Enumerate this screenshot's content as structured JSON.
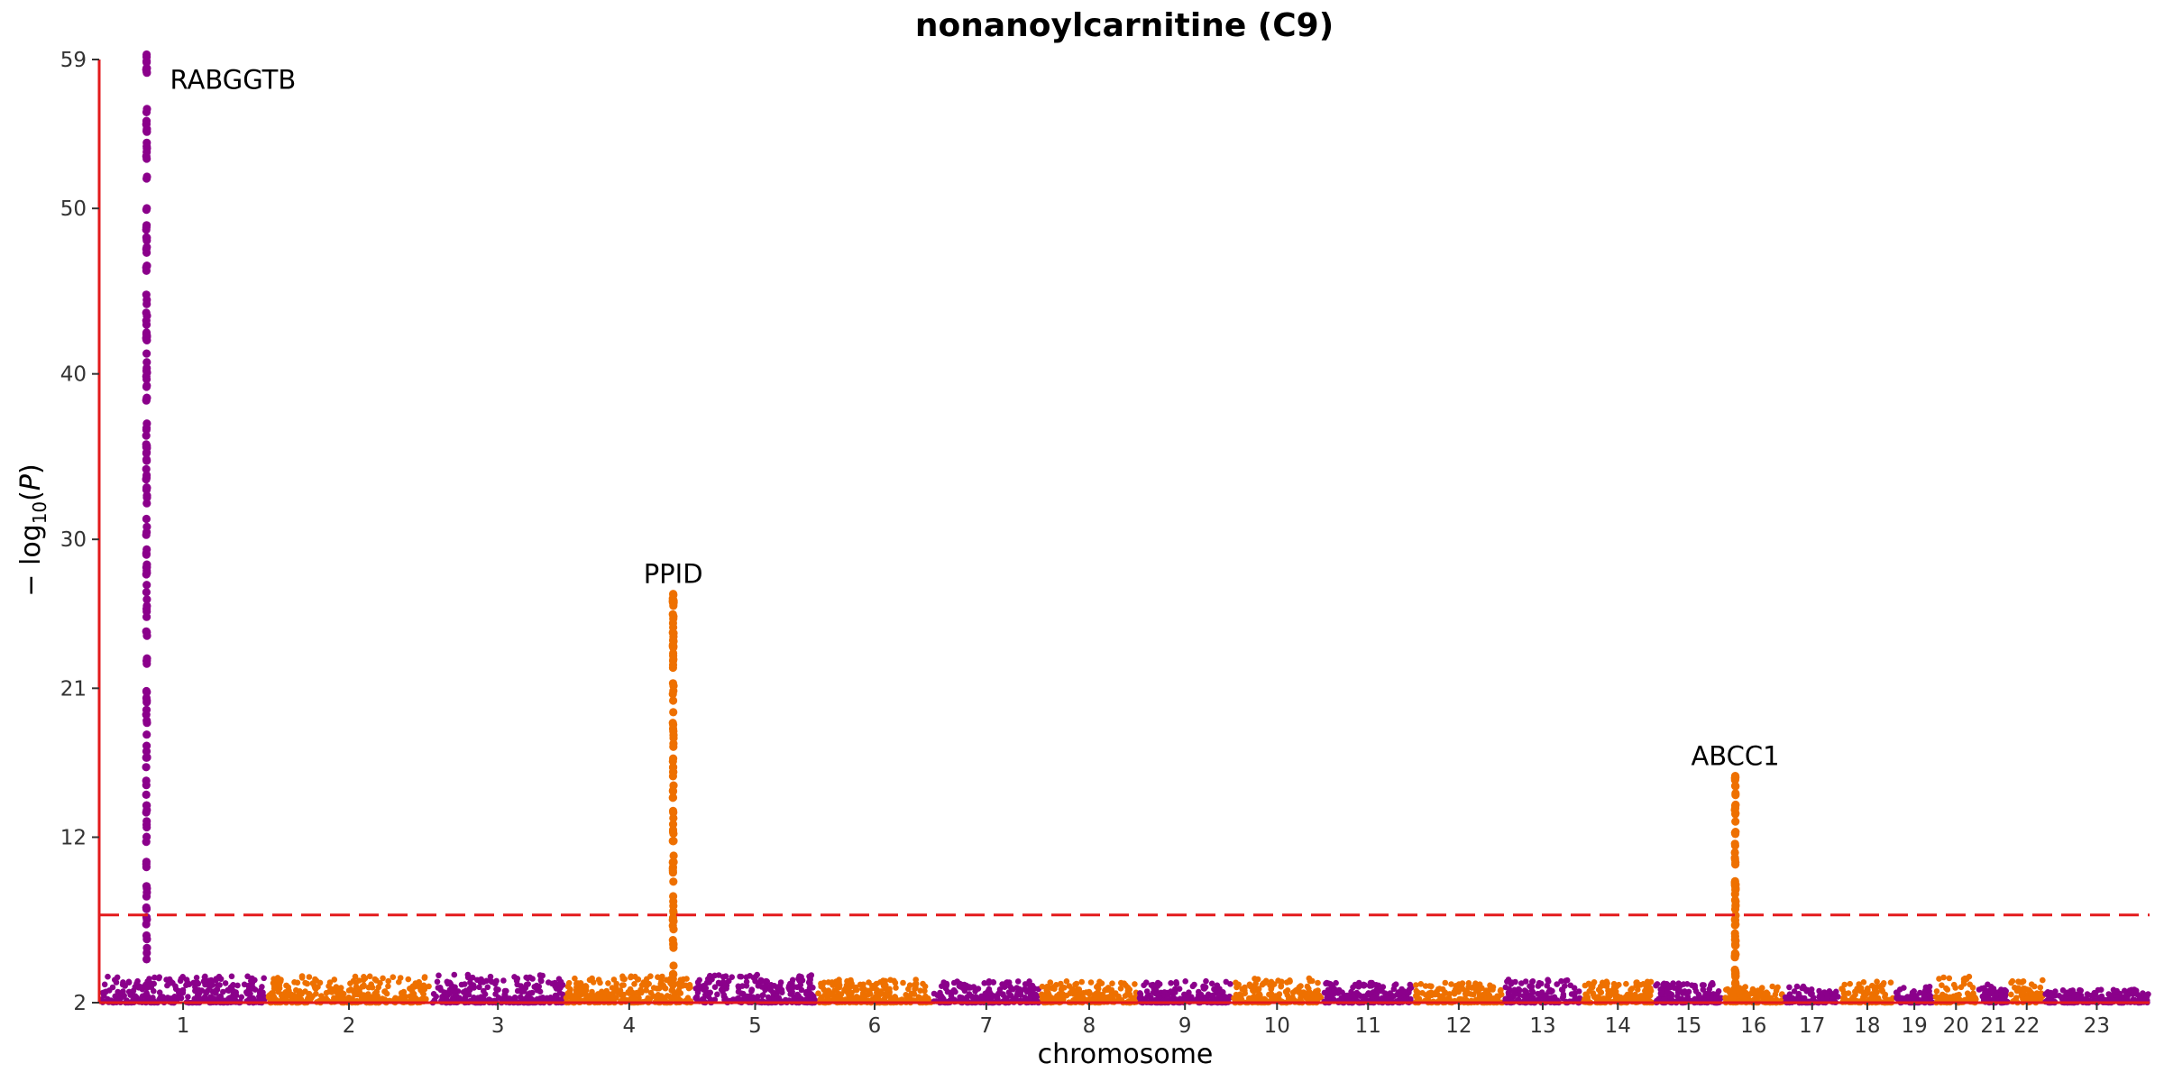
{
  "chart_data": {
    "type": "scatter",
    "subtype": "manhattan",
    "title": "nonanoylcarnitine (C9)",
    "xlabel": "chromosome",
    "ylabel": {
      "prefix": "− log",
      "sub": "10",
      "open": "(",
      "var": "P",
      "close": ")"
    },
    "ylim": [
      2,
      59
    ],
    "yticks": [
      {
        "value": 2,
        "label": "2"
      },
      {
        "value": 12,
        "label": "12"
      },
      {
        "value": 21,
        "label": "21"
      },
      {
        "value": 30,
        "label": "30"
      },
      {
        "value": 40,
        "label": "40"
      },
      {
        "value": 50,
        "label": "50"
      },
      {
        "value": 59,
        "label": "59"
      }
    ],
    "significance_threshold": 7.3,
    "colors": {
      "odd": "#8B008B",
      "even": "#EE7000",
      "axis": "#E31A1C",
      "threshold": "#E31A1C"
    },
    "chromosomes": [
      {
        "label": "1",
        "start": 0,
        "end": 248,
        "baseline_max": 3.6
      },
      {
        "label": "2",
        "start": 248,
        "end": 490,
        "baseline_max": 3.7
      },
      {
        "label": "3",
        "start": 490,
        "end": 688,
        "baseline_max": 3.7
      },
      {
        "label": "4",
        "start": 688,
        "end": 878,
        "baseline_max": 3.6
      },
      {
        "label": "5",
        "start": 878,
        "end": 1060,
        "baseline_max": 3.7
      },
      {
        "label": "6",
        "start": 1060,
        "end": 1231,
        "baseline_max": 3.4
      },
      {
        "label": "7",
        "start": 1231,
        "end": 1390,
        "baseline_max": 3.3
      },
      {
        "label": "8",
        "start": 1390,
        "end": 1535,
        "baseline_max": 3.3
      },
      {
        "label": "9",
        "start": 1535,
        "end": 1673,
        "baseline_max": 3.3
      },
      {
        "label": "10",
        "start": 1673,
        "end": 1807,
        "baseline_max": 3.5
      },
      {
        "label": "11",
        "start": 1807,
        "end": 1942,
        "baseline_max": 3.2
      },
      {
        "label": "12",
        "start": 1942,
        "end": 2075,
        "baseline_max": 3.2
      },
      {
        "label": "13",
        "start": 2075,
        "end": 2190,
        "baseline_max": 3.4
      },
      {
        "label": "14",
        "start": 2190,
        "end": 2297,
        "baseline_max": 3.3
      },
      {
        "label": "15",
        "start": 2297,
        "end": 2399,
        "baseline_max": 3.2
      },
      {
        "label": "16",
        "start": 2399,
        "end": 2489,
        "baseline_max": 3.0
      },
      {
        "label": "17",
        "start": 2489,
        "end": 2572,
        "baseline_max": 3.0
      },
      {
        "label": "18",
        "start": 2572,
        "end": 2652,
        "baseline_max": 3.3
      },
      {
        "label": "19",
        "start": 2652,
        "end": 2711,
        "baseline_max": 3.0
      },
      {
        "label": "20",
        "start": 2711,
        "end": 2775,
        "baseline_max": 3.6
      },
      {
        "label": "21",
        "start": 2775,
        "end": 2822,
        "baseline_max": 3.1
      },
      {
        "label": "22",
        "start": 2822,
        "end": 2873,
        "baseline_max": 3.4
      },
      {
        "label": "23",
        "start": 2873,
        "end": 3029,
        "baseline_max": 2.8
      }
    ],
    "peaks": [
      {
        "gene": "RABGGTB",
        "chromosome": "1",
        "position": 70,
        "max": 59.3,
        "label_anchor": "start"
      },
      {
        "gene": "PPID",
        "chromosome": "4",
        "position": 848,
        "max": 26.7,
        "label_anchor": "middle"
      },
      {
        "gene": "ABCC1",
        "chromosome": "16",
        "position": 2417,
        "max": 15.7,
        "label_anchor": "middle"
      }
    ]
  }
}
